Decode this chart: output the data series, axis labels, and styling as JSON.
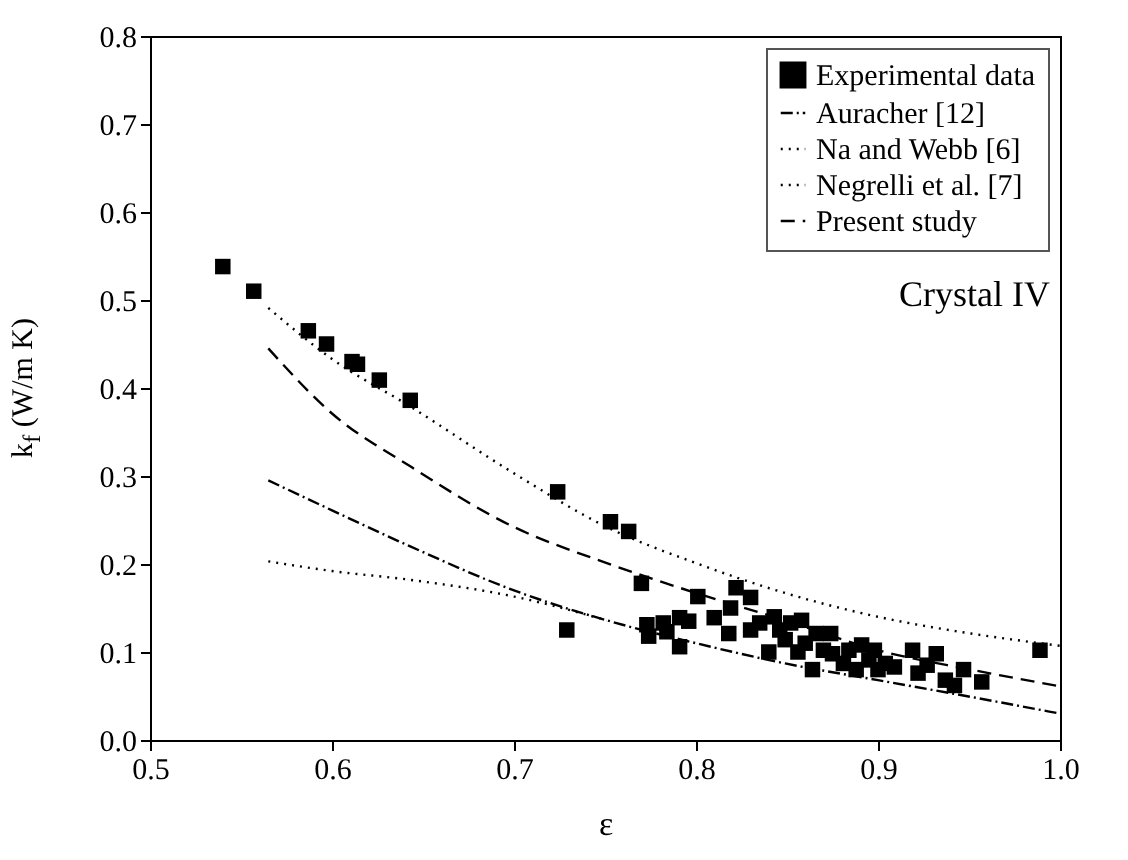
{
  "chart_data": {
    "type": "scatter",
    "xlabel": "ε",
    "ylabel": "k$_{f}$ (W/m K)",
    "xlim": [
      0.5,
      1.0
    ],
    "ylim": [
      0,
      0.8
    ],
    "xticks": [
      0.5,
      0.6,
      0.7,
      0.8,
      0.9,
      {
        "value": 1,
        "label": "1.0"
      }
    ],
    "yticks": [
      {
        "value": 0,
        "label": "0.0"
      },
      0.1,
      0.2,
      0.3,
      0.4,
      0.5,
      0.6,
      0.7,
      0.8
    ],
    "grid": false,
    "legend": "top right",
    "annotations": [
      "Crystal IV"
    ],
    "series": [
      {
        "name": "Experimental data",
        "marker": "square",
        "color": "#000000",
        "x": [
          0.54,
          0.557,
          0.587,
          0.597,
          0.611,
          0.614,
          0.626,
          0.643,
          0.724,
          0.729,
          0.753,
          0.763,
          0.77,
          0.773,
          0.774,
          0.782,
          0.784,
          0.791,
          0.791,
          0.796,
          0.801,
          0.81,
          0.818,
          0.819,
          0.822,
          0.83,
          0.83,
          0.835,
          0.84,
          0.843,
          0.846,
          0.849,
          0.852,
          0.856,
          0.858,
          0.86,
          0.864,
          0.866,
          0.87,
          0.874,
          0.875,
          0.881,
          0.884,
          0.888,
          0.891,
          0.895,
          0.898,
          0.9,
          0.904,
          0.909,
          0.919,
          0.922,
          0.927,
          0.932,
          0.937,
          0.942,
          0.947,
          0.957,
          0.989
        ],
        "values": [
          0.538,
          0.51,
          0.465,
          0.45,
          0.43,
          0.427,
          0.409,
          0.386,
          0.282,
          0.125,
          0.248,
          0.237,
          0.178,
          0.131,
          0.118,
          0.133,
          0.123,
          0.106,
          0.139,
          0.135,
          0.163,
          0.139,
          0.121,
          0.15,
          0.173,
          0.162,
          0.125,
          0.133,
          0.1,
          0.14,
          0.125,
          0.114,
          0.133,
          0.1,
          0.136,
          0.11,
          0.08,
          0.121,
          0.102,
          0.121,
          0.098,
          0.087,
          0.102,
          0.08,
          0.108,
          0.091,
          0.102,
          0.08,
          0.087,
          0.083,
          0.102,
          0.076,
          0.085,
          0.098,
          0.068,
          0.062,
          0.08,
          0.066,
          0.102
        ]
      },
      {
        "name": "Auracher [12]",
        "type": "line",
        "line_style": "dashdot",
        "color": "#000000",
        "x": [
          0.565,
          0.6,
          0.643,
          0.7,
          0.751,
          0.8,
          0.849,
          0.9,
          0.951,
          1.0
        ],
        "values": [
          0.295,
          0.261,
          0.22,
          0.17,
          0.136,
          0.11,
          0.087,
          0.068,
          0.049,
          0.03
        ]
      },
      {
        "name": "Na and Webb [6]",
        "type": "line",
        "line_style": "dotted",
        "color": "#000000",
        "x": [
          0.565,
          0.6,
          0.643,
          0.7,
          0.751
        ],
        "values": [
          0.203,
          0.192,
          0.182,
          0.163,
          0.136
        ]
      },
      {
        "name": "Negrelli et al. [7]",
        "type": "line",
        "line_style": "dotted",
        "color": "#000000",
        "x": [
          0.565,
          0.6,
          0.643,
          0.7,
          0.751,
          0.8,
          0.849,
          0.9,
          0.951,
          0.989,
          1.0
        ],
        "values": [
          0.491,
          0.433,
          0.379,
          0.303,
          0.242,
          0.201,
          0.167,
          0.14,
          0.121,
          0.11,
          0.107
        ]
      },
      {
        "name": "Present study",
        "type": "line",
        "line_style": "dashed",
        "color": "#000000",
        "x": [
          0.565,
          0.6,
          0.643,
          0.7,
          0.751,
          0.8,
          0.849,
          0.9,
          0.951,
          1.0
        ],
        "values": [
          0.445,
          0.371,
          0.311,
          0.242,
          0.201,
          0.167,
          0.136,
          0.102,
          0.08,
          0.061
        ]
      }
    ]
  }
}
